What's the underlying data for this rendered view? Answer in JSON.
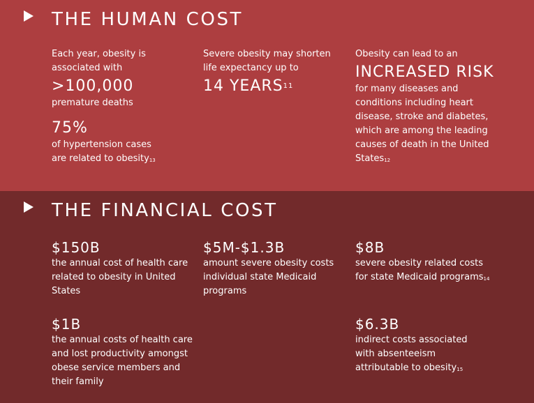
{
  "human": {
    "title": "THE HUMAN COST",
    "col1": {
      "intro": "Each year, obesity is associated with",
      "stat": ">100,000",
      "stat_desc": "premature deaths",
      "stat2": "75%",
      "stat2_desc_1": "of hypertension cases",
      "stat2_desc_2": "are related to obesity",
      "stat2_ref": "13"
    },
    "col2": {
      "intro": "Severe obesity may shorten life expectancy up to",
      "stat": "14 YEARS",
      "stat_ref": "11"
    },
    "col3": {
      "intro": "Obesity can lead to an",
      "stat": "INCREASED RISK",
      "desc": "for many diseases and conditions including heart disease, stroke and diabetes, which are among the leading causes of death in the United States",
      "ref": "12"
    }
  },
  "financial": {
    "title": "THE FINANCIAL COST",
    "items": [
      {
        "value": "$150B",
        "desc": "the annual cost of health care related to obesity in United States",
        "ref": ""
      },
      {
        "value": "$5M-$1.3B",
        "desc": "amount severe obesity costs individual state Medicaid programs",
        "ref": ""
      },
      {
        "value": "$8B",
        "desc": "severe obesity related costs for state Medicaid programs",
        "ref": "14"
      },
      {
        "value": "$1B",
        "desc": "the annual costs of health care and lost productivity amongst obese service members and their family",
        "ref": ""
      },
      {
        "value": "$6.3B",
        "desc": "indirect costs associated with absenteeism attributable to obesity",
        "ref": "15"
      }
    ]
  },
  "icons": {
    "bullet": "play-triangle-icon"
  },
  "colors": {
    "human_bg": "#ad3e40",
    "financial_bg": "#722a2b",
    "text": "#ffffff"
  }
}
